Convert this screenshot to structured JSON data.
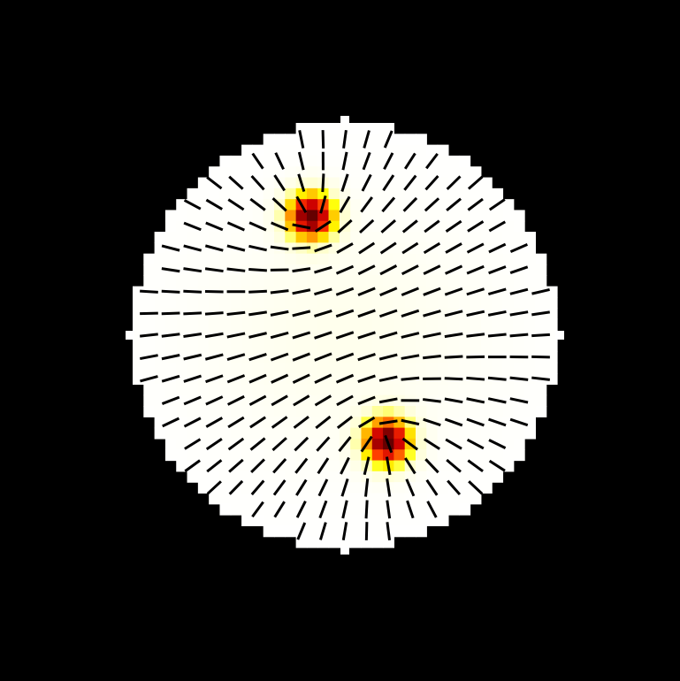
{
  "figure": {
    "kind": "director-field",
    "background_color": "#000000",
    "disk_color": "#ffffff",
    "needle_color": "#000000",
    "colormap": [
      "#ffffff",
      "#ffffcc",
      "#ffff00",
      "#ff9900",
      "#ff3300",
      "#cc0000",
      "#660000"
    ],
    "defects": [
      {
        "name": "upper-defect",
        "u": -0.16,
        "v": -0.56,
        "strength": 0.5
      },
      {
        "name": "lower-defect",
        "u": 0.2,
        "v": 0.5,
        "strength": 0.5
      }
    ],
    "grid_cells": 39,
    "sample_every": 2
  }
}
